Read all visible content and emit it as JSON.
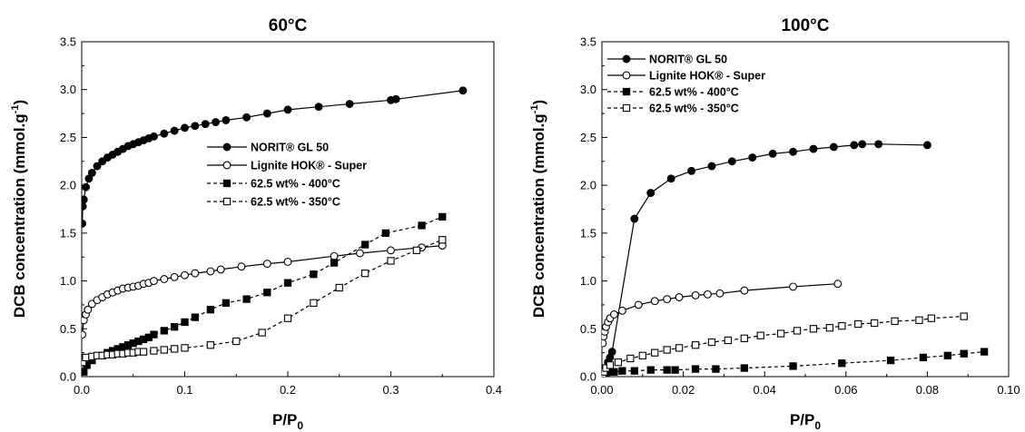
{
  "chart_data": [
    {
      "type": "line",
      "title": "60°C",
      "xlabel": "P/P",
      "xlabel_sub": "0",
      "ylabel_main": "DCB concentration (mmol.g",
      "ylabel_sup": "-1",
      "ylabel_end": ")",
      "xlim": [
        0,
        0.4
      ],
      "ylim": [
        0,
        3.5
      ],
      "xticks": [
        "0.0",
        "0.1",
        "0.2",
        "0.3",
        "0.4"
      ],
      "yticks": [
        "0.0",
        "0.5",
        "1.0",
        "1.5",
        "2.0",
        "2.5",
        "3.0",
        "3.5"
      ],
      "legend_position": "center-right",
      "series": [
        {
          "name": "NORIT® GL 50",
          "marker": "filled-circle",
          "line": "solid",
          "x": [
            0.0005,
            0.001,
            0.002,
            0.004,
            0.007,
            0.01,
            0.015,
            0.02,
            0.025,
            0.03,
            0.035,
            0.04,
            0.045,
            0.05,
            0.055,
            0.06,
            0.065,
            0.07,
            0.08,
            0.09,
            0.1,
            0.11,
            0.12,
            0.13,
            0.14,
            0.16,
            0.18,
            0.2,
            0.23,
            0.26,
            0.3,
            0.305,
            0.37
          ],
          "y": [
            1.6,
            1.78,
            1.85,
            1.98,
            2.07,
            2.13,
            2.2,
            2.25,
            2.29,
            2.32,
            2.35,
            2.38,
            2.41,
            2.43,
            2.45,
            2.47,
            2.49,
            2.51,
            2.54,
            2.57,
            2.6,
            2.62,
            2.64,
            2.66,
            2.68,
            2.71,
            2.75,
            2.79,
            2.82,
            2.85,
            2.89,
            2.9,
            2.99
          ]
        },
        {
          "name": "Lignite HOK® - Super",
          "marker": "open-circle",
          "line": "solid",
          "x": [
            0.0005,
            0.002,
            0.004,
            0.006,
            0.01,
            0.015,
            0.02,
            0.025,
            0.03,
            0.035,
            0.04,
            0.045,
            0.05,
            0.055,
            0.06,
            0.065,
            0.07,
            0.08,
            0.09,
            0.1,
            0.11,
            0.125,
            0.135,
            0.155,
            0.18,
            0.2,
            0.245,
            0.27,
            0.3,
            0.33,
            0.35
          ],
          "y": [
            0.44,
            0.59,
            0.65,
            0.7,
            0.76,
            0.8,
            0.83,
            0.86,
            0.88,
            0.9,
            0.92,
            0.93,
            0.94,
            0.95,
            0.97,
            0.98,
            1.0,
            1.02,
            1.04,
            1.06,
            1.08,
            1.1,
            1.12,
            1.15,
            1.18,
            1.2,
            1.26,
            1.29,
            1.32,
            1.35,
            1.37
          ]
        },
        {
          "name": "62.5 wt% - 400°C",
          "marker": "filled-square",
          "line": "dashed",
          "x": [
            0.002,
            0.005,
            0.01,
            0.02,
            0.025,
            0.03,
            0.035,
            0.04,
            0.045,
            0.05,
            0.055,
            0.06,
            0.065,
            0.07,
            0.08,
            0.09,
            0.1,
            0.11,
            0.125,
            0.14,
            0.16,
            0.18,
            0.2,
            0.225,
            0.245,
            0.275,
            0.295,
            0.33,
            0.35
          ],
          "y": [
            0.05,
            0.12,
            0.17,
            0.22,
            0.25,
            0.27,
            0.29,
            0.31,
            0.33,
            0.35,
            0.37,
            0.39,
            0.41,
            0.44,
            0.48,
            0.52,
            0.57,
            0.62,
            0.7,
            0.77,
            0.81,
            0.88,
            0.98,
            1.07,
            1.19,
            1.38,
            1.5,
            1.58,
            1.67
          ]
        },
        {
          "name": "62.5 wt% - 350°C",
          "marker": "open-square",
          "line": "dashed",
          "x": [
            0.001,
            0.004,
            0.01,
            0.015,
            0.02,
            0.025,
            0.03,
            0.035,
            0.04,
            0.045,
            0.05,
            0.055,
            0.06,
            0.07,
            0.08,
            0.09,
            0.1,
            0.125,
            0.15,
            0.175,
            0.2,
            0.225,
            0.25,
            0.275,
            0.3,
            0.325,
            0.35
          ],
          "y": [
            0.15,
            0.2,
            0.21,
            0.22,
            0.22,
            0.23,
            0.23,
            0.24,
            0.24,
            0.25,
            0.25,
            0.26,
            0.26,
            0.27,
            0.28,
            0.29,
            0.3,
            0.33,
            0.37,
            0.46,
            0.61,
            0.77,
            0.93,
            1.08,
            1.21,
            1.32,
            1.43
          ]
        }
      ]
    },
    {
      "type": "line",
      "title": "100°C",
      "xlabel": "P/P",
      "xlabel_sub": "0",
      "ylabel_main": "DCB concentration (mmol.g",
      "ylabel_sup": "-1",
      "ylabel_end": ")",
      "xlim": [
        0,
        0.1
      ],
      "ylim": [
        0,
        3.5
      ],
      "xticks": [
        "0.00",
        "0.02",
        "0.04",
        "0.06",
        "0.08",
        "0.10"
      ],
      "yticks": [
        "0.0",
        "0.5",
        "1.0",
        "1.5",
        "2.0",
        "2.5",
        "3.0",
        "3.5"
      ],
      "legend_position": "top-left",
      "series": [
        {
          "name": "NORIT® GL 50",
          "marker": "filled-circle",
          "line": "solid",
          "x": [
            0.0005,
            0.001,
            0.0015,
            0.002,
            0.0025,
            0.008,
            0.012,
            0.017,
            0.022,
            0.027,
            0.032,
            0.037,
            0.042,
            0.047,
            0.052,
            0.057,
            0.062,
            0.064,
            0.068,
            0.08
          ],
          "y": [
            0.02,
            0.08,
            0.15,
            0.2,
            0.26,
            1.65,
            1.92,
            2.07,
            2.15,
            2.2,
            2.25,
            2.29,
            2.33,
            2.35,
            2.38,
            2.4,
            2.42,
            2.43,
            2.43,
            2.42
          ]
        },
        {
          "name": "Lignite HOK® - Super",
          "marker": "open-circle",
          "line": "solid",
          "x": [
            0.0002,
            0.0004,
            0.0007,
            0.001,
            0.0015,
            0.002,
            0.003,
            0.005,
            0.009,
            0.013,
            0.016,
            0.019,
            0.023,
            0.026,
            0.029,
            0.035,
            0.047,
            0.058
          ],
          "y": [
            0.35,
            0.42,
            0.47,
            0.52,
            0.57,
            0.61,
            0.65,
            0.69,
            0.75,
            0.79,
            0.81,
            0.83,
            0.85,
            0.86,
            0.87,
            0.9,
            0.94,
            0.97
          ]
        },
        {
          "name": "62.5 wt% - 400°C",
          "marker": "filled-square",
          "line": "dashed",
          "x": [
            0.0003,
            0.001,
            0.002,
            0.003,
            0.005,
            0.008,
            0.012,
            0.016,
            0.018,
            0.023,
            0.028,
            0.035,
            0.047,
            0.059,
            0.071,
            0.079,
            0.085,
            0.089,
            0.094
          ],
          "y": [
            0.03,
            0.04,
            0.05,
            0.05,
            0.06,
            0.06,
            0.07,
            0.07,
            0.07,
            0.08,
            0.08,
            0.09,
            0.11,
            0.14,
            0.17,
            0.2,
            0.22,
            0.24,
            0.26
          ]
        },
        {
          "name": "62.5 wt% - 350°C",
          "marker": "open-square",
          "line": "dashed",
          "x": [
            0.0002,
            0.0005,
            0.001,
            0.002,
            0.004,
            0.007,
            0.01,
            0.013,
            0.016,
            0.019,
            0.023,
            0.027,
            0.031,
            0.035,
            0.039,
            0.044,
            0.048,
            0.052,
            0.056,
            0.059,
            0.063,
            0.067,
            0.072,
            0.078,
            0.081,
            0.089
          ],
          "y": [
            0.02,
            0.05,
            0.09,
            0.12,
            0.15,
            0.19,
            0.22,
            0.25,
            0.28,
            0.3,
            0.33,
            0.36,
            0.38,
            0.4,
            0.43,
            0.45,
            0.48,
            0.5,
            0.51,
            0.53,
            0.55,
            0.56,
            0.58,
            0.59,
            0.61,
            0.63
          ]
        }
      ]
    }
  ]
}
